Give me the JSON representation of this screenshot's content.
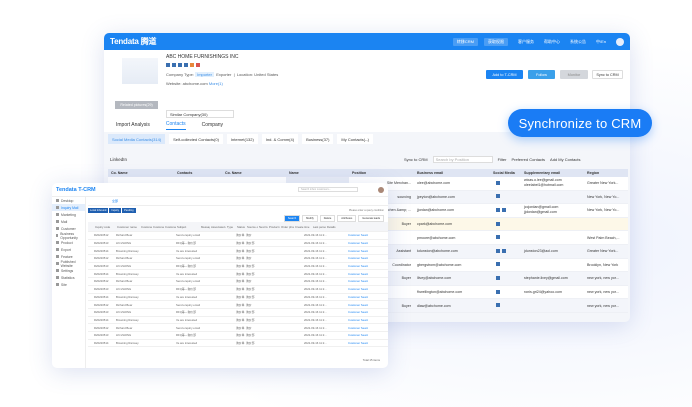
{
  "main": {
    "logo": "Tendata 腾道",
    "header_buttons": [
      "转移CRM",
      "获取权限"
    ],
    "header_links": [
      "客户服务",
      "帮助中心",
      "系统公告",
      "中/En"
    ],
    "actions": {
      "add": "Add to T-CRM",
      "follow": "Follow",
      "monitor": "Monitor",
      "sync": "Sync to CRM"
    },
    "related_pictures": "Related pictures(29)",
    "company_name": "ABC HOME FURNISHINGS INC",
    "company_type_label": "Company Type:",
    "type_importer": "Importer",
    "type_exporter": "Exporter",
    "location": "Location: United States",
    "website_label": "Website: abchome.com",
    "website_more": "More(1)",
    "similar": "Similar Company(30)",
    "tabs": [
      "Import Analysis",
      "Contacts",
      "Company"
    ],
    "chips": [
      "Social Media Contacts(314)",
      "Self-collected Contacts(0)",
      "Internet(132)",
      "Ind. & Comm(4)",
      "Business(37)",
      "My Contacts(--)"
    ],
    "section": "LinkedIn",
    "tools": {
      "sync": "Sync to CRM",
      "search": "Search by Position",
      "filter": "Filter",
      "preferred": "Preferred Contacts",
      "add": "Add My Contacts"
    },
    "columns": [
      "Co. Name",
      "Contacts",
      "Co. Name",
      "Name",
      "Position",
      "Business email",
      "Social Media",
      "Supplementary email",
      "Region"
    ],
    "rows": [
      {
        "position": "Site Merchan...",
        "email": "olee@abchome.com",
        "social": 1,
        "supp": [
          "wixas.o.lee@gmail.com",
          "oleelabel1@hotmail.com"
        ],
        "region": "Greater New York..."
      },
      {
        "position": "sourcing",
        "email": "jpeyton@abchome.com",
        "social": 1,
        "supp": [],
        "region": "New York, New Yo..."
      },
      {
        "position": "Kitchen &amp; ...",
        "email": "jjordan@abchome.com",
        "social": 2,
        "supp": [
          "jccjordan@gmail.com",
          "jjdordan@gmail.com"
        ],
        "region": "New York, New Yo..."
      },
      {
        "position": "Buyer",
        "email": "cpark@abchome.com",
        "social": 1,
        "supp": [],
        "region": ""
      },
      {
        "position": "",
        "email": "pmoore@abchome.com",
        "social": 1,
        "supp": [],
        "region": "West Palm Beach,..."
      },
      {
        "position": "Assistant",
        "email": "kdunston@abchome.com",
        "social": 2,
        "supp": [
          "jdunston23@aol.com"
        ],
        "region": "Greater New York..."
      },
      {
        "position": "Coordinator",
        "email": "gbergstrom@abchome.com",
        "social": 1,
        "supp": [],
        "region": "Brooklyn, New York"
      },
      {
        "position": "Buyer",
        "email": "llivey@abchome.com",
        "social": 1,
        "supp": [
          "stephanie.livey@gmail.com"
        ],
        "region": "new york, new yor..."
      },
      {
        "position": "",
        "email": "fhwellington@abchome.com",
        "social": 1,
        "supp": [
          "ronis.gri24@yahoo.com"
        ],
        "region": "new york, new yor..."
      },
      {
        "position": "Buyer",
        "email": "dlaw@abchome.com",
        "social": 1,
        "supp": [],
        "region": "new york, new yor..."
      }
    ]
  },
  "banner": "Synchronize to CRM",
  "tcrm": {
    "logo": "Tendata T-CRM",
    "search": "Search inbox customers...",
    "menu": [
      "Desktop",
      "Inquiry Mail",
      "Marketing",
      "Mail",
      "Customer",
      "Business Opportunity",
      "Product",
      "Export",
      "Feature",
      "Published Website",
      "Settings",
      "Statistics",
      "Site"
    ],
    "tab": "全部",
    "filters": [
      "Local Inbound",
      "Inquiry",
      "Pending"
    ],
    "hint": "Please enter a query condition",
    "buttons": [
      "Search",
      "Modify",
      "Delete",
      "Attributes",
      "Generate leads"
    ],
    "columns": [
      "Inquiry code",
      "Customer name",
      "Customer group",
      "Customer rating",
      "Customer tier",
      "Subject",
      "Message",
      "Associated customer name",
      "Type",
      "Status",
      "Source of inquiry",
      "Next fee",
      "Product name",
      "Order phone",
      "Create time",
      "Last person",
      "Details"
    ],
    "rows": [
      [
        "R20220512",
        "Richard Bear",
        "Send enquiry email",
        "询价单",
        "询价"
      ],
      [
        "R20220513",
        "LIN ZHONG",
        "RFQ等—询价部",
        "询价单",
        "询价部"
      ],
      [
        "R20220514",
        "Browning Ramsey",
        "Ve are interested",
        "询价单",
        "询价部"
      ]
    ],
    "detail": "Customer Search",
    "time": "2022-09-16 11:2...",
    "pagination": "Total 15 items"
  }
}
